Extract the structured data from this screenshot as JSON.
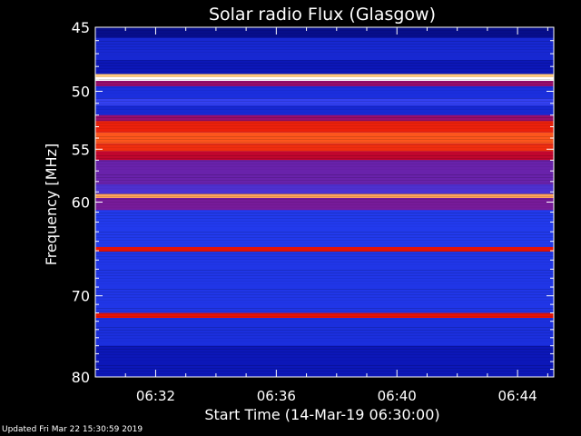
{
  "chart_data": {
    "type": "heatmap",
    "title": "Solar radio Flux (Glasgow)",
    "xlabel": "Start Time (14-Mar-19 06:30:00)",
    "ylabel": "Frequency [MHz]",
    "x_range_minutes": [
      0,
      15.2
    ],
    "x_ticks": [
      {
        "label": "06:32",
        "minute": 2
      },
      {
        "label": "06:36",
        "minute": 6
      },
      {
        "label": "06:40",
        "minute": 10
      },
      {
        "label": "06:44",
        "minute": 14
      }
    ],
    "y_scale": "log",
    "ylim": [
      45,
      80
    ],
    "y_ticks": [
      {
        "label": "45",
        "value": 45
      },
      {
        "label": "50",
        "value": 50
      },
      {
        "label": "55",
        "value": 55
      },
      {
        "label": "60",
        "value": 60
      },
      {
        "label": "70",
        "value": 70
      },
      {
        "label": "80",
        "value": 80
      }
    ],
    "colormap": [
      "#00002a",
      "#0a14b4",
      "#2a46ff",
      "#8a1080",
      "#e00000",
      "#ff6020",
      "#ffd080",
      "#ffffff"
    ],
    "bands": [
      {
        "from": 45.0,
        "to": 45.8,
        "intensity": 0.1
      },
      {
        "from": 45.8,
        "to": 47.5,
        "intensity": 0.2
      },
      {
        "from": 47.5,
        "to": 48.6,
        "intensity": 0.15
      },
      {
        "from": 48.6,
        "to": 48.85,
        "intensity": 0.85
      },
      {
        "from": 48.85,
        "to": 49.15,
        "intensity": 1.0
      },
      {
        "from": 49.15,
        "to": 49.6,
        "intensity": 0.45
      },
      {
        "from": 49.6,
        "to": 50.6,
        "intensity": 0.22
      },
      {
        "from": 50.6,
        "to": 51.2,
        "intensity": 0.3
      },
      {
        "from": 51.2,
        "to": 52.0,
        "intensity": 0.2
      },
      {
        "from": 52.0,
        "to": 52.5,
        "intensity": 0.45
      },
      {
        "from": 52.5,
        "to": 53.5,
        "intensity": 0.62
      },
      {
        "from": 53.5,
        "to": 54.5,
        "intensity": 0.7
      },
      {
        "from": 54.5,
        "to": 55.2,
        "intensity": 0.64
      },
      {
        "from": 55.2,
        "to": 56.0,
        "intensity": 0.52
      },
      {
        "from": 56.0,
        "to": 58.3,
        "intensity": 0.38
      },
      {
        "from": 58.3,
        "to": 59.2,
        "intensity": 0.34
      },
      {
        "from": 59.2,
        "to": 59.6,
        "intensity": 0.8
      },
      {
        "from": 59.6,
        "to": 60.8,
        "intensity": 0.4
      },
      {
        "from": 60.8,
        "to": 64.6,
        "intensity": 0.25
      },
      {
        "from": 64.6,
        "to": 65.1,
        "intensity": 0.6
      },
      {
        "from": 65.1,
        "to": 72.0,
        "intensity": 0.24
      },
      {
        "from": 72.0,
        "to": 72.6,
        "intensity": 0.6
      },
      {
        "from": 72.6,
        "to": 76.0,
        "intensity": 0.22
      },
      {
        "from": 76.0,
        "to": 80.0,
        "intensity": 0.15
      }
    ]
  },
  "footer": {
    "updated": "Updated Fri Mar 22 15:30:59 2019"
  }
}
